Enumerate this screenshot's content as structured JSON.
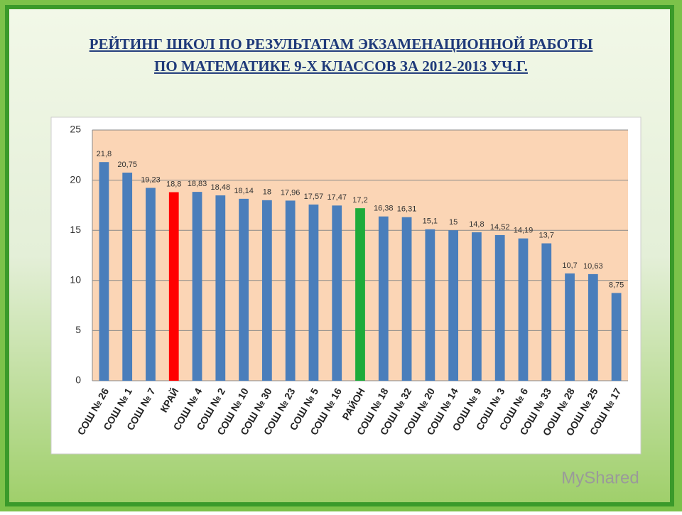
{
  "chart_data": {
    "type": "bar",
    "title": [
      "РЕЙТИНГ ШКОЛ ПО РЕЗУЛЬТАТАМ ЭКЗАМЕНАЦИОННОЙ РАБОТЫ",
      "ПО МАТЕМАТИКЕ 9-Х КЛАССОВ ЗА 2012-2013 УЧ.Г."
    ],
    "categories": [
      "СОШ № 26",
      "СОШ № 1",
      "СОШ № 7",
      "КРАЙ",
      "СОШ № 4",
      "СОШ № 2",
      "СОШ № 10",
      "СОШ № 30",
      "СОШ № 23",
      "СОШ № 5",
      "СОШ № 16",
      "РАЙОН",
      "СОШ № 18",
      "СОШ № 32",
      "СОШ № 20",
      "СОШ № 14",
      "ООШ № 9",
      "СОШ № 3",
      "СОШ № 6",
      "СОШ № 33",
      "ООШ № 28",
      "ООШ № 25",
      "СОШ № 17"
    ],
    "values": [
      21.8,
      20.75,
      19.23,
      18.8,
      18.83,
      18.48,
      18.14,
      18,
      17.96,
      17.57,
      17.47,
      17.2,
      16.38,
      16.31,
      15.1,
      15,
      14.8,
      14.52,
      14.19,
      13.7,
      10.7,
      10.63,
      8.75
    ],
    "value_labels": [
      "21,8",
      "20,75",
      "19,23",
      "18,8",
      "18,83",
      "18,48",
      "18,14",
      "18",
      "17,96",
      "17,57",
      "17,47",
      "17,2",
      "16,38",
      "16,31",
      "15,1",
      "15",
      "14,8",
      "14,52",
      "14,19",
      "13,7",
      "10,7",
      "10,63",
      "8,75"
    ],
    "colors": [
      "#4a7ebb",
      "#4a7ebb",
      "#4a7ebb",
      "#ff0000",
      "#4a7ebb",
      "#4a7ebb",
      "#4a7ebb",
      "#4a7ebb",
      "#4a7ebb",
      "#4a7ebb",
      "#4a7ebb",
      "#1eab3a",
      "#4a7ebb",
      "#4a7ebb",
      "#4a7ebb",
      "#4a7ebb",
      "#4a7ebb",
      "#4a7ebb",
      "#4a7ebb",
      "#4a7ebb",
      "#4a7ebb",
      "#4a7ebb",
      "#4a7ebb"
    ],
    "ylim": [
      0,
      25
    ],
    "yticks": [
      0,
      5,
      10,
      15,
      20,
      25
    ],
    "grid": true,
    "watermark": "MyShared"
  }
}
